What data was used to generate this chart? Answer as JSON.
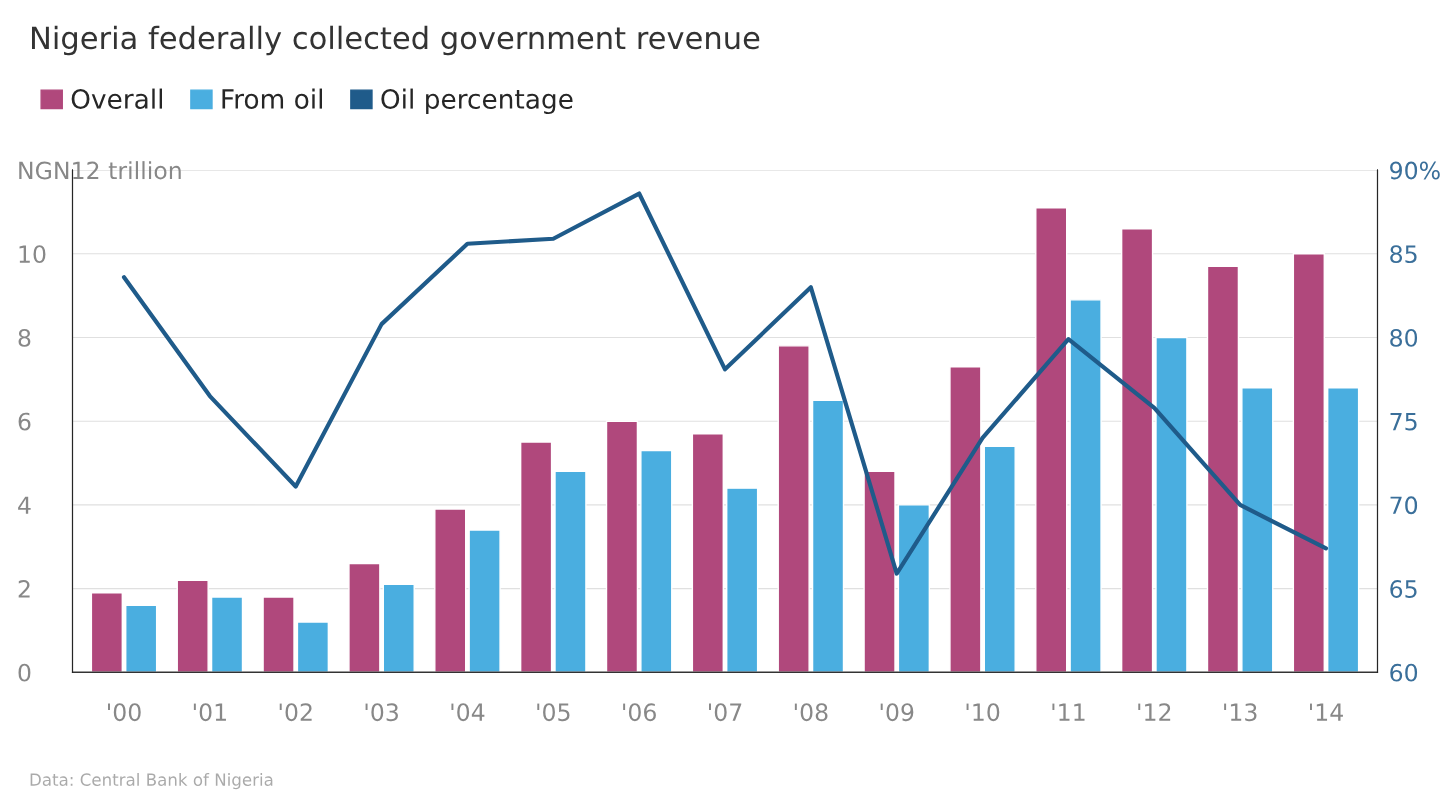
{
  "chart_data": {
    "type": "bar",
    "title": "Nigeria federally collected government revenue",
    "categories": [
      "'00",
      "'01",
      "'02",
      "'03",
      "'04",
      "'05",
      "'06",
      "'07",
      "'08",
      "'09",
      "'10",
      "'11",
      "'12",
      "'13",
      "'14"
    ],
    "series": [
      {
        "name": "Overall",
        "color": "#b0487c",
        "values": [
          1.9,
          2.2,
          1.8,
          2.6,
          3.9,
          5.5,
          6.0,
          5.7,
          7.8,
          4.8,
          7.3,
          11.1,
          10.6,
          9.7,
          10.0
        ]
      },
      {
        "name": "From oil",
        "color": "#4aaee0",
        "values": [
          1.6,
          1.8,
          1.2,
          2.1,
          3.4,
          4.8,
          5.3,
          4.4,
          6.5,
          4.0,
          5.4,
          8.9,
          8.0,
          6.8,
          6.8
        ]
      },
      {
        "name": "Oil percentage",
        "color": "#1f5b8a",
        "type": "line",
        "axis": "y2",
        "values": [
          83.6,
          76.5,
          71.1,
          80.8,
          85.6,
          85.9,
          88.6,
          78.1,
          83.0,
          65.9,
          74.0,
          79.9,
          75.8,
          70.0,
          67.4
        ]
      }
    ],
    "ylim": [
      0,
      12
    ],
    "yticks": [
      0,
      2,
      4,
      6,
      8,
      10,
      {
        "value": 12,
        "label": "NGN12 trillion"
      }
    ],
    "y2lim": [
      60,
      90
    ],
    "y2ticks": [
      60,
      65,
      70,
      75,
      80,
      85,
      {
        "value": 90,
        "label": "90%"
      }
    ],
    "grid": "y",
    "legend": "top left",
    "annotations": [
      "Data: Central Bank of Nigeria"
    ]
  }
}
